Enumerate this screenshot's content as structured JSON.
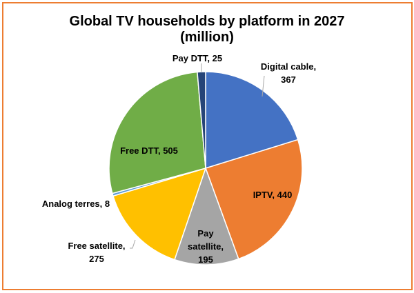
{
  "chart_data": {
    "type": "pie",
    "title": [
      "Global TV households by platform in 2027",
      "(million)"
    ],
    "categories": [
      "Digital cable",
      "IPTV",
      "Pay satellite",
      "Free satellite",
      "Analog terres",
      "Free DTT",
      "Pay DTT"
    ],
    "values": [
      367,
      440,
      195,
      275,
      8,
      505,
      25
    ],
    "colors": [
      "#4472C4",
      "#ED7D31",
      "#A5A5A5",
      "#FFC000",
      "#5B9BD5",
      "#70AD47",
      "#264478"
    ],
    "data_labels": [
      [
        "Digital cable,",
        "367"
      ],
      [
        "IPTV, 440"
      ],
      [
        "Pay",
        "satellite,",
        "195"
      ],
      [
        "Free satellite,",
        "275"
      ],
      [
        "Analog terres, 8"
      ],
      [
        "Free DTT, 505"
      ],
      [
        "Pay DTT, 25"
      ]
    ],
    "start_angle": "12 o'clock",
    "direction": "clockwise",
    "legend": "none"
  }
}
